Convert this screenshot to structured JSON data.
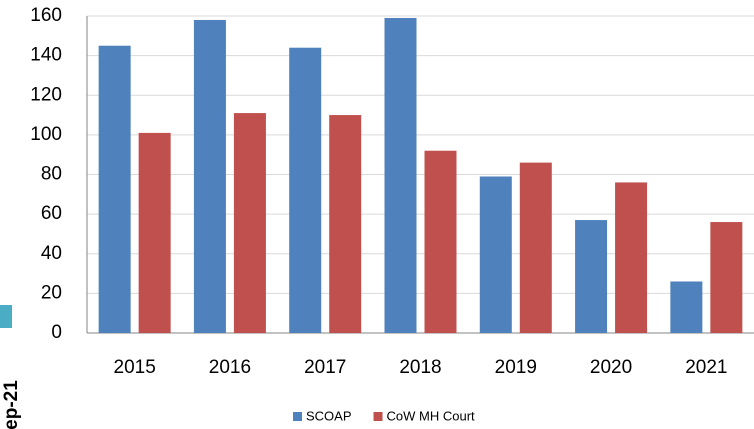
{
  "chart_data": {
    "type": "bar",
    "categories": [
      "2015",
      "2016",
      "2017",
      "2018",
      "2019",
      "2020",
      "2021"
    ],
    "series": [
      {
        "name": "SCOAP",
        "color": "#4f81bd",
        "values": [
          145,
          158,
          144,
          159,
          79,
          57,
          26
        ]
      },
      {
        "name": "CoW MH Court",
        "color": "#c0504d",
        "values": [
          101,
          111,
          110,
          92,
          86,
          76,
          56
        ]
      }
    ],
    "ylim": [
      0,
      160
    ],
    "yticks": [
      0,
      20,
      40,
      60,
      80,
      100,
      120,
      140,
      160
    ],
    "grid": true,
    "legend": "bottom",
    "annotations": [
      "ep-21"
    ]
  }
}
